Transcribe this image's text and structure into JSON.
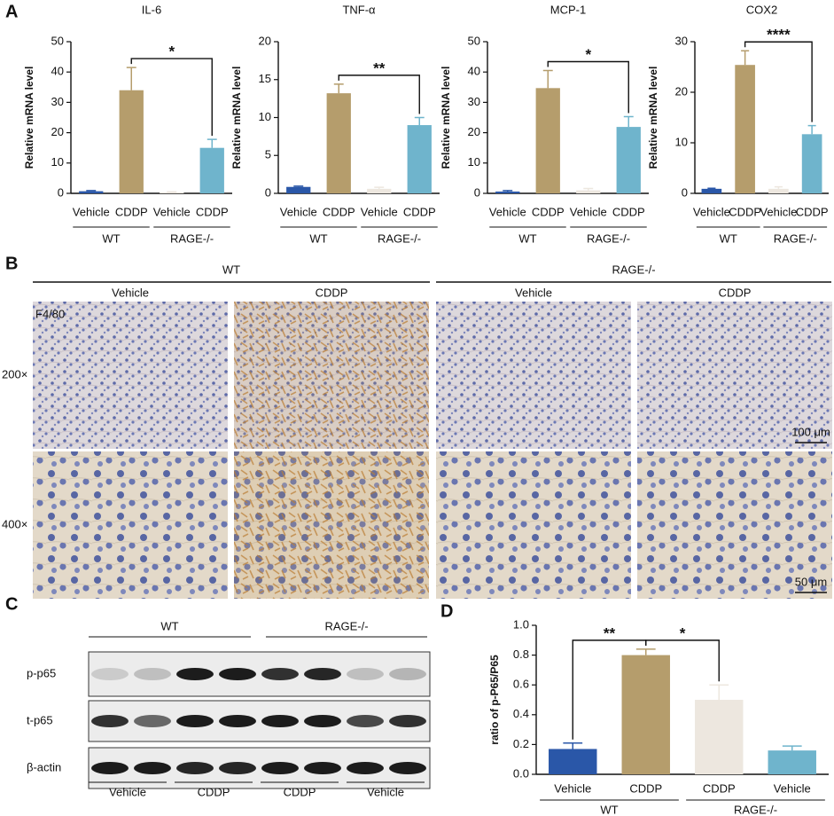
{
  "panel_labels": [
    "A",
    "B",
    "C",
    "D"
  ],
  "chart_data": [
    {
      "type": "bar",
      "title": "IL-6",
      "ylabel": "Relative mRNA level",
      "categories": [
        "Vehicle",
        "CDDP",
        "Vehicle",
        "CDDP"
      ],
      "groups": [
        "WT",
        "RAGE-/-"
      ],
      "values": [
        0.7,
        34,
        0.3,
        15
      ],
      "errors": [
        0.2,
        7.5,
        0.2,
        2.8
      ],
      "colors": [
        "#2a57a8",
        "#b59d6c",
        "#ede7df",
        "#6fb4cc"
      ],
      "ylim": [
        0,
        50
      ],
      "yticks": [
        0,
        10,
        20,
        30,
        40,
        50
      ],
      "significance": [
        {
          "between": [
            1,
            3
          ],
          "label": "*"
        }
      ]
    },
    {
      "type": "bar",
      "title": "TNF-α",
      "ylabel": "Relative mRNA level",
      "categories": [
        "Vehicle",
        "CDDP",
        "Vehicle",
        "CDDP"
      ],
      "groups": [
        "WT",
        "RAGE-/-"
      ],
      "values": [
        0.85,
        13.2,
        0.6,
        9.0
      ],
      "errors": [
        0.1,
        1.2,
        0.2,
        1.0
      ],
      "colors": [
        "#2a57a8",
        "#b59d6c",
        "#ede7df",
        "#6fb4cc"
      ],
      "ylim": [
        0,
        20
      ],
      "yticks": [
        0,
        5,
        10,
        15,
        20
      ],
      "significance": [
        {
          "between": [
            1,
            3
          ],
          "label": "**"
        }
      ]
    },
    {
      "type": "bar",
      "title": "MCP-1",
      "ylabel": "Relative mRNA level",
      "categories": [
        "Vehicle",
        "CDDP",
        "Vehicle",
        "CDDP"
      ],
      "groups": [
        "WT",
        "RAGE-/-"
      ],
      "values": [
        0.6,
        34.7,
        1.0,
        21.9
      ],
      "errors": [
        0.3,
        5.8,
        0.6,
        3.4
      ],
      "colors": [
        "#2a57a8",
        "#b59d6c",
        "#ede7df",
        "#6fb4cc"
      ],
      "ylim": [
        0,
        50
      ],
      "yticks": [
        0,
        10,
        20,
        30,
        40,
        50
      ],
      "significance": [
        {
          "between": [
            1,
            3
          ],
          "label": "*"
        }
      ]
    },
    {
      "type": "bar",
      "title": "COX2",
      "ylabel": "Relative mRNA level",
      "categories": [
        "Vehicle",
        "CDDP",
        "Vehicle",
        "CDDP"
      ],
      "groups": [
        "WT",
        "RAGE-/-"
      ],
      "values": [
        0.9,
        25.4,
        0.9,
        11.7
      ],
      "errors": [
        0.1,
        2.8,
        0.4,
        1.7
      ],
      "colors": [
        "#2a57a8",
        "#b59d6c",
        "#ede7df",
        "#6fb4cc"
      ],
      "ylim": [
        0,
        30
      ],
      "yticks": [
        0,
        10,
        20,
        30
      ],
      "significance": [
        {
          "between": [
            1,
            3
          ],
          "label": "****"
        }
      ]
    },
    {
      "type": "bar",
      "ylabel": "ratio of p-P65/P65",
      "categories": [
        "Vehicle",
        "CDDP",
        "CDDP",
        "Vehicle"
      ],
      "groups": [
        "WT",
        "RAGE-/-"
      ],
      "values": [
        0.17,
        0.8,
        0.5,
        0.16
      ],
      "errors": [
        0.04,
        0.04,
        0.1,
        0.03
      ],
      "colors": [
        "#2a57a8",
        "#b59d6c",
        "#ede7df",
        "#6fb4cc"
      ],
      "ylim": [
        0,
        1.0
      ],
      "yticks": [
        {
          "value": 0,
          "label": "0.0"
        },
        0.2,
        0.4,
        0.6,
        0.8,
        {
          "value": 1,
          "label": "1.0"
        }
      ],
      "significance": [
        {
          "between": [
            0,
            1
          ],
          "label": "**"
        },
        {
          "between": [
            1,
            2
          ],
          "label": "*"
        }
      ]
    }
  ],
  "histology": {
    "groups": [
      "WT",
      "RAGE-/-"
    ],
    "columns": [
      "Vehicle",
      "CDDP",
      "Vehicle",
      "CDDP"
    ],
    "stain": "F4/80",
    "rows": [
      "200×",
      "400×"
    ],
    "scale_bars": [
      "100 μm",
      "50 μm"
    ]
  },
  "blot": {
    "groups": [
      "WT",
      "RAGE-/-"
    ],
    "rows": [
      "p-p65",
      "t-p65",
      "β-actin"
    ],
    "lanes": [
      "Vehicle",
      "CDDP",
      "CDDP",
      "Vehicle"
    ]
  }
}
